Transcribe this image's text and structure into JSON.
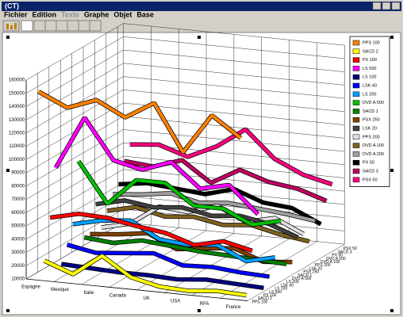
{
  "window_title": "(CT)",
  "menu": [
    "Fichier",
    "Edition",
    "Texte",
    "Graphe",
    "Objet",
    "Base"
  ],
  "chart_data": {
    "type": "line3d",
    "categories": [
      "Espagne",
      "Mexique",
      "Italie",
      "Canada",
      "UK",
      "USA",
      "RFA",
      "France"
    ],
    "ylim": [
      10000,
      160000
    ],
    "yticks": [
      10000,
      20000,
      30000,
      40000,
      50000,
      60000,
      70000,
      80000,
      90000,
      100000,
      110000,
      120000,
      130000,
      140000,
      150000,
      160000
    ],
    "grid": true,
    "series": [
      {
        "name": "PPS 100",
        "color": "#ff8000",
        "values": [
          150000,
          140000,
          148000,
          137000,
          150000,
          115000,
          145000,
          130000
        ]
      },
      {
        "name": "SACD 2",
        "color": "#ffff00",
        "values": [
          20000,
          12000,
          28000,
          14000,
          9000,
          8000,
          10000,
          9000
        ]
      },
      {
        "name": "PX 100",
        "color": "#ff0000",
        "values": [
          50000,
          55000,
          54000,
          50000,
          47000,
          40000,
          45000,
          40000
        ]
      },
      {
        "name": "LS 500",
        "color": "#ff00ff",
        "values": [
          85000,
          125000,
          95000,
          90000,
          98000,
          80000,
          85000,
          65000
        ]
      },
      {
        "name": "LS 100",
        "color": "#000080",
        "values": [
          10000,
          9000,
          8000,
          8000,
          7000,
          9000,
          8000,
          7000
        ]
      },
      {
        "name": "LSK 40",
        "color": "#0000ff",
        "values": [
          22000,
          18000,
          20000,
          22000,
          15000,
          16000,
          14000,
          13000
        ]
      },
      {
        "name": "LS  200",
        "color": "#00a0ff",
        "values": [
          35000,
          40000,
          42000,
          30000,
          28000,
          30000,
          20000,
          25000
        ]
      },
      {
        "name": "DVD A 500",
        "color": "#00c000",
        "values": [
          80000,
          50000,
          70000,
          70000,
          55000,
          55000,
          45000,
          50000
        ]
      },
      {
        "name": "SACD 1",
        "color": "#008000",
        "values": [
          20000,
          18000,
          22000,
          20000,
          18000,
          17000,
          16000,
          15000
        ]
      },
      {
        "name": "PSX 250",
        "color": "#804000",
        "values": [
          20000,
          22000,
          25000,
          15000,
          18000,
          20000,
          12000,
          14000
        ]
      },
      {
        "name": "LSK 20",
        "color": "#404040",
        "values": [
          40000,
          45000,
          42000,
          44000,
          40000,
          42000,
          38000,
          30000
        ]
      },
      {
        "name": "PPS 200",
        "color": "#e0e0e0",
        "values": [
          20000,
          25000,
          40000,
          38000,
          45000,
          35000,
          40000,
          30000
        ]
      },
      {
        "name": "DVD A 100",
        "color": "#806020",
        "values": [
          30000,
          35000,
          30000,
          32000,
          28000,
          30000,
          25000,
          22000
        ]
      },
      {
        "name": "DVD A  200",
        "color": "#a0a0a0",
        "values": [
          40000,
          42000,
          45000,
          40000,
          42000,
          40000,
          38000,
          35000
        ]
      },
      {
        "name": "PX 50",
        "color": "#000000",
        "values": [
          45000,
          48000,
          46000,
          44000,
          50000,
          42000,
          40000,
          30000
        ]
      },
      {
        "name": "SACD 3",
        "color": "#c00060",
        "values": [
          60000,
          58000,
          65000,
          50000,
          62000,
          55000,
          52000,
          45000
        ]
      },
      {
        "name": "PSX 50",
        "color": "#ff0080",
        "values": [
          70000,
          72000,
          65000,
          75000,
          90000,
          70000,
          60000,
          55000
        ]
      }
    ]
  }
}
